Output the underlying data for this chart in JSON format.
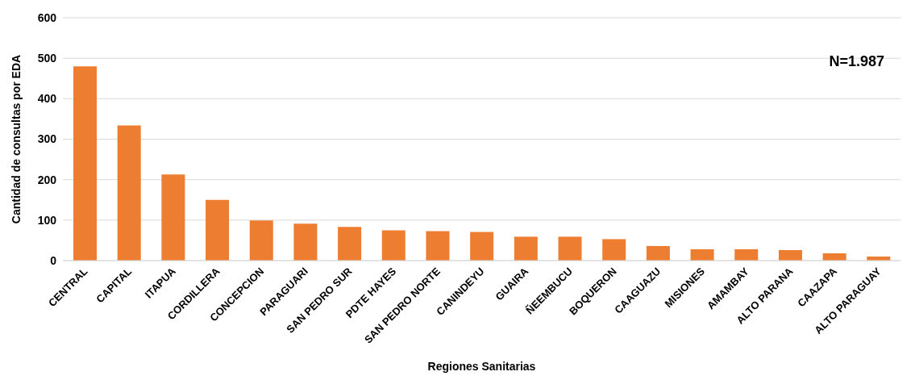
{
  "chart_data": {
    "type": "bar",
    "xlabel": "Regiones Sanitarias",
    "ylabel": "Cantidad de consultas por EDA",
    "categories": [
      "CENTRAL",
      "CAPITAL",
      "ITAPUA",
      "CORDILLERA",
      "CONCEPCION",
      "PARAGUARI",
      "SAN PEDRO SUR",
      "PDTE HAYES",
      "SAN PEDRO NORTE",
      "CANINDEYU",
      "GUAIRA",
      "ÑEEMBUCU",
      "BOQUERON",
      "CAAGUAZU",
      "MISIONES",
      "AMAMBAY",
      "ALTO PARANA",
      "CAAZAPA",
      "ALTO PARAGUAY"
    ],
    "values": [
      480,
      334,
      213,
      150,
      99,
      91,
      83,
      75,
      73,
      71,
      59,
      59,
      53,
      36,
      28,
      28,
      26,
      18,
      10
    ],
    "color": "#ed7d31",
    "ylim": [
      0,
      600
    ],
    "yticks": [
      0,
      100,
      200,
      300,
      400,
      500,
      600
    ],
    "grid": "y",
    "annotations": [
      "N=1.987"
    ]
  }
}
